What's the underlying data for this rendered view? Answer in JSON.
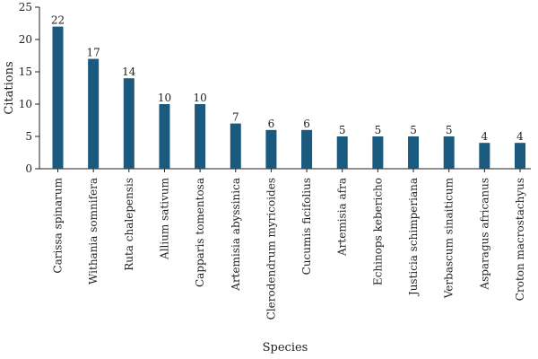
{
  "chart_data": {
    "type": "bar",
    "title": "",
    "xlabel": "Species",
    "ylabel": "Citations",
    "ylim": [
      0,
      25
    ],
    "yticks": [
      0,
      5,
      10,
      15,
      20,
      25
    ],
    "grid": false,
    "bar_color": "#1a5a7e",
    "categories": [
      "Carissa spinarum",
      "Withania somnifera",
      "Ruta chalepensis",
      "Allium sativum",
      "Capparis tomentosa",
      "Artemisia abyssinica",
      "Clerodendrum myricoides",
      "Cucumis ficifolius",
      "Artemisia afra",
      "Echinops kebericho",
      "Justicia schimperiana",
      "Verbascum sinaiticum",
      "Asparagus africanus",
      "Croton macrostachyus"
    ],
    "values": [
      22,
      17,
      14,
      10,
      10,
      7,
      6,
      6,
      5,
      5,
      5,
      5,
      4,
      4
    ]
  }
}
